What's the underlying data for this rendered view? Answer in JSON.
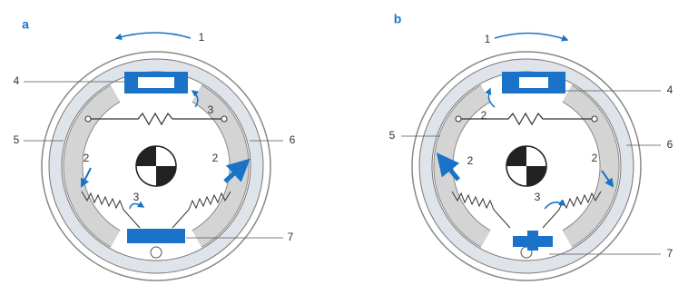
{
  "panels": [
    {
      "label": "a",
      "callouts": [
        "1",
        "4",
        "3",
        "5",
        "2",
        "2",
        "6",
        "3",
        "7"
      ]
    },
    {
      "label": "b",
      "callouts": [
        "1",
        "4",
        "2",
        "5",
        "2",
        "6",
        "2",
        "3",
        "7"
      ]
    }
  ]
}
